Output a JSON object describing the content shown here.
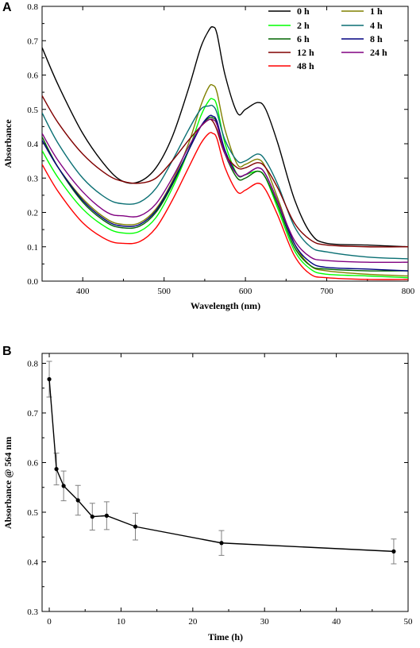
{
  "chart_data": [
    {
      "panel_label": "A",
      "type": "line",
      "xlabel": "Wavelength (nm)",
      "ylabel": "Absorbance",
      "xlim": [
        350,
        800
      ],
      "ylim": [
        0.0,
        0.8
      ],
      "x_ticks": [
        "400",
        "500",
        "600",
        "700",
        "800"
      ],
      "y_ticks": [
        "0.0",
        "0.1",
        "0.2",
        "0.3",
        "0.4",
        "0.5",
        "0.6",
        "0.7",
        "0.8"
      ],
      "legend_position": "top-right",
      "x": [
        350,
        370,
        400,
        430,
        450,
        470,
        490,
        510,
        530,
        545,
        555,
        560,
        565,
        575,
        590,
        600,
        615,
        625,
        640,
        660,
        680,
        700,
        750,
        800
      ],
      "series": [
        {
          "name": "0 h",
          "color": "#000000",
          "values": [
            0.68,
            0.57,
            0.43,
            0.33,
            0.29,
            0.29,
            0.33,
            0.42,
            0.56,
            0.68,
            0.73,
            0.74,
            0.72,
            0.6,
            0.49,
            0.5,
            0.52,
            0.5,
            0.4,
            0.24,
            0.14,
            0.11,
            0.105,
            0.1
          ]
        },
        {
          "name": "1 h",
          "color": "#808000",
          "values": [
            0.41,
            0.33,
            0.24,
            0.18,
            0.165,
            0.17,
            0.21,
            0.29,
            0.4,
            0.51,
            0.565,
            0.57,
            0.55,
            0.44,
            0.34,
            0.34,
            0.355,
            0.33,
            0.24,
            0.11,
            0.045,
            0.03,
            0.02,
            0.015
          ]
        },
        {
          "name": "2 h",
          "color": "#00ff00",
          "values": [
            0.38,
            0.3,
            0.21,
            0.155,
            0.14,
            0.145,
            0.185,
            0.27,
            0.38,
            0.48,
            0.525,
            0.53,
            0.51,
            0.4,
            0.31,
            0.31,
            0.32,
            0.3,
            0.21,
            0.09,
            0.035,
            0.02,
            0.015,
            0.01
          ]
        },
        {
          "name": "4 h",
          "color": "#0a6f73",
          "values": [
            0.49,
            0.4,
            0.3,
            0.24,
            0.225,
            0.23,
            0.27,
            0.35,
            0.44,
            0.5,
            0.51,
            0.51,
            0.49,
            0.41,
            0.35,
            0.35,
            0.37,
            0.35,
            0.28,
            0.16,
            0.1,
            0.085,
            0.07,
            0.065
          ]
        },
        {
          "name": "6 h",
          "color": "#006400",
          "values": [
            0.42,
            0.33,
            0.23,
            0.17,
            0.155,
            0.16,
            0.2,
            0.28,
            0.38,
            0.45,
            0.475,
            0.475,
            0.46,
            0.37,
            0.3,
            0.3,
            0.32,
            0.3,
            0.22,
            0.1,
            0.045,
            0.035,
            0.03,
            0.03
          ]
        },
        {
          "name": "8 h",
          "color": "#000080",
          "values": [
            0.41,
            0.33,
            0.235,
            0.175,
            0.16,
            0.165,
            0.205,
            0.285,
            0.38,
            0.45,
            0.48,
            0.48,
            0.465,
            0.38,
            0.31,
            0.31,
            0.33,
            0.31,
            0.23,
            0.11,
            0.055,
            0.04,
            0.035,
            0.03
          ]
        },
        {
          "name": "12 h",
          "color": "#800000",
          "values": [
            0.54,
            0.46,
            0.37,
            0.31,
            0.29,
            0.285,
            0.3,
            0.35,
            0.41,
            0.45,
            0.47,
            0.465,
            0.44,
            0.37,
            0.33,
            0.33,
            0.345,
            0.33,
            0.27,
            0.17,
            0.12,
            0.105,
            0.1,
            0.1
          ]
        },
        {
          "name": "24 h",
          "color": "#800080",
          "values": [
            0.43,
            0.35,
            0.26,
            0.2,
            0.19,
            0.19,
            0.225,
            0.3,
            0.39,
            0.45,
            0.47,
            0.47,
            0.455,
            0.37,
            0.31,
            0.31,
            0.33,
            0.31,
            0.23,
            0.12,
            0.07,
            0.06,
            0.055,
            0.055
          ]
        },
        {
          "name": "48 h",
          "color": "#ff0000",
          "values": [
            0.34,
            0.26,
            0.17,
            0.12,
            0.11,
            0.115,
            0.155,
            0.235,
            0.33,
            0.4,
            0.43,
            0.43,
            0.415,
            0.33,
            0.26,
            0.265,
            0.285,
            0.265,
            0.19,
            0.075,
            0.02,
            0.01,
            0.005,
            0.005
          ]
        }
      ]
    },
    {
      "panel_label": "B",
      "type": "line",
      "xlabel": "Time (h)",
      "ylabel": "Absorbance @ 564 nm",
      "xlim": [
        -1,
        50
      ],
      "ylim": [
        0.3,
        0.82
      ],
      "x_ticks": [
        "0",
        "10",
        "20",
        "30",
        "40",
        "50"
      ],
      "y_ticks": [
        "0.3",
        "0.4",
        "0.5",
        "0.6",
        "0.7",
        "0.8"
      ],
      "x": [
        0,
        1,
        2,
        4,
        6,
        8,
        12,
        24,
        48
      ],
      "values": [
        0.768,
        0.587,
        0.553,
        0.524,
        0.491,
        0.493,
        0.471,
        0.438,
        0.421
      ],
      "error": [
        0.036,
        0.032,
        0.03,
        0.03,
        0.027,
        0.028,
        0.027,
        0.025,
        0.025
      ],
      "line_color": "#000000",
      "errorbar_color": "#808080"
    }
  ]
}
